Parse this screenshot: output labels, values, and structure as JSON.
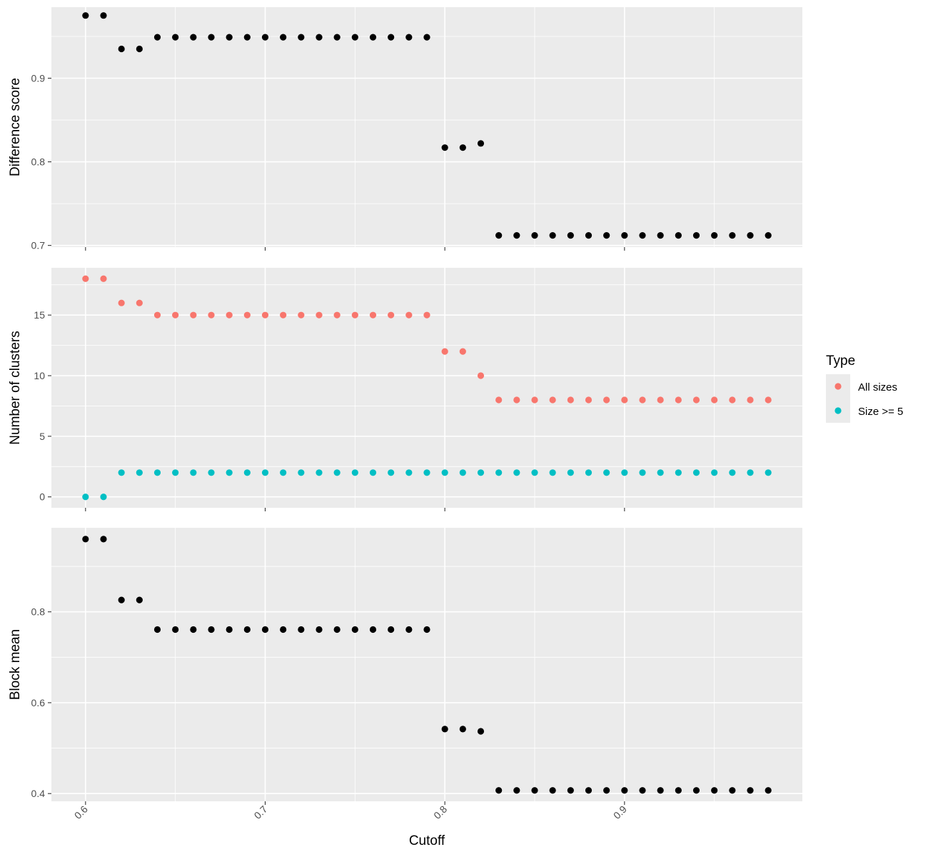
{
  "chart_data": {
    "type": "scatter",
    "x": [
      0.6,
      0.61,
      0.62,
      0.63,
      0.64,
      0.65,
      0.66,
      0.67,
      0.68,
      0.69,
      0.7,
      0.71,
      0.72,
      0.73,
      0.74,
      0.75,
      0.76,
      0.77,
      0.78,
      0.79,
      0.8,
      0.81,
      0.82,
      0.83,
      0.84,
      0.85,
      0.86,
      0.87,
      0.88,
      0.89,
      0.9,
      0.91,
      0.92,
      0.93,
      0.94,
      0.95,
      0.96,
      0.97,
      0.98
    ],
    "xlabel": "Cutoff",
    "xlim": [
      0.581,
      0.999
    ],
    "xticks": [
      0.6,
      0.7,
      0.8,
      0.9
    ],
    "xtick_labels": [
      "0.6",
      "0.7",
      "0.8",
      "0.9"
    ],
    "xtick_rotation": "45 degrees",
    "grid": true,
    "legend": {
      "title": "Type",
      "position": "right",
      "entries": [
        {
          "label": "All sizes",
          "color": "#F8766D"
        },
        {
          "label": "Size >= 5",
          "color": "#00BFC4"
        }
      ]
    },
    "panels": [
      {
        "ylabel": "Difference score",
        "ylim": [
          0.698,
          0.985
        ],
        "yticks": [
          0.7,
          0.8,
          0.9
        ],
        "ytick_labels": [
          "0.7",
          "0.8",
          "0.9"
        ],
        "series": [
          {
            "color": "#000000",
            "values": [
              0.975,
              0.975,
              0.935,
              0.935,
              0.949,
              0.949,
              0.949,
              0.949,
              0.949,
              0.949,
              0.949,
              0.949,
              0.949,
              0.949,
              0.949,
              0.949,
              0.949,
              0.949,
              0.949,
              0.949,
              0.817,
              0.817,
              0.822,
              0.712,
              0.712,
              0.712,
              0.712,
              0.712,
              0.712,
              0.712,
              0.712,
              0.712,
              0.712,
              0.712,
              0.712,
              0.712,
              0.712,
              0.712,
              0.712
            ]
          }
        ]
      },
      {
        "ylabel": "Number of clusters",
        "ylim": [
          -0.9,
          18.9
        ],
        "yticks": [
          0,
          5,
          10,
          15
        ],
        "ytick_labels": [
          "0",
          "5",
          "10",
          "15"
        ],
        "series": [
          {
            "name": "All sizes",
            "color": "#F8766D",
            "values": [
              18,
              18,
              16,
              16,
              15,
              15,
              15,
              15,
              15,
              15,
              15,
              15,
              15,
              15,
              15,
              15,
              15,
              15,
              15,
              15,
              12,
              12,
              10,
              8,
              8,
              8,
              8,
              8,
              8,
              8,
              8,
              8,
              8,
              8,
              8,
              8,
              8,
              8,
              8
            ]
          },
          {
            "name": "Size >= 5",
            "color": "#00BFC4",
            "values": [
              0,
              0,
              2,
              2,
              2,
              2,
              2,
              2,
              2,
              2,
              2,
              2,
              2,
              2,
              2,
              2,
              2,
              2,
              2,
              2,
              2,
              2,
              2,
              2,
              2,
              2,
              2,
              2,
              2,
              2,
              2,
              2,
              2,
              2,
              2,
              2,
              2,
              2,
              2
            ]
          }
        ]
      },
      {
        "ylabel": "Block mean",
        "ylim": [
          0.383,
          0.985
        ],
        "yticks": [
          0.4,
          0.6,
          0.8
        ],
        "ytick_labels": [
          "0.4",
          "0.6",
          "0.8"
        ],
        "series": [
          {
            "color": "#000000",
            "values": [
              0.96,
              0.96,
              0.826,
              0.826,
              0.761,
              0.761,
              0.761,
              0.761,
              0.761,
              0.761,
              0.761,
              0.761,
              0.761,
              0.761,
              0.761,
              0.761,
              0.761,
              0.761,
              0.761,
              0.761,
              0.542,
              0.542,
              0.537,
              0.407,
              0.407,
              0.407,
              0.407,
              0.407,
              0.407,
              0.407,
              0.407,
              0.407,
              0.407,
              0.407,
              0.407,
              0.407,
              0.407,
              0.407,
              0.407
            ]
          }
        ]
      }
    ]
  }
}
